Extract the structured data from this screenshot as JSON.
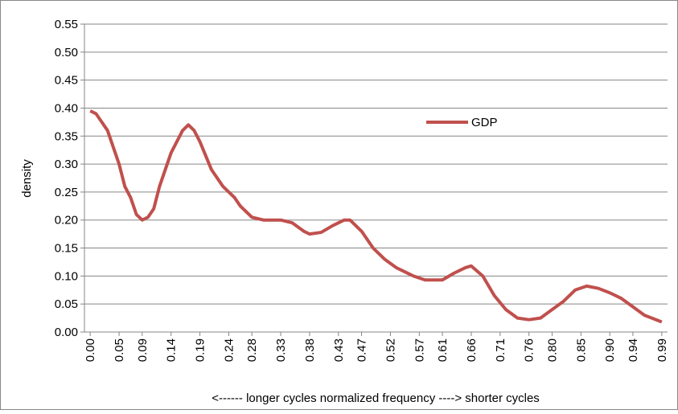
{
  "chart_data": {
    "type": "line",
    "xlabel": "<------ longer cycles   normalized frequency   ----> shorter cycles",
    "ylabel": "density",
    "series": [
      {
        "name": "GDP",
        "color": "#c0504d",
        "x": [
          0,
          0.01,
          0.03,
          0.05,
          0.06,
          0.07,
          0.08,
          0.09,
          0.1,
          0.11,
          0.12,
          0.14,
          0.16,
          0.17,
          0.18,
          0.19,
          0.21,
          0.23,
          0.25,
          0.26,
          0.28,
          0.3,
          0.33,
          0.35,
          0.37,
          0.38,
          0.4,
          0.42,
          0.44,
          0.45,
          0.47,
          0.49,
          0.51,
          0.53,
          0.56,
          0.58,
          0.61,
          0.63,
          0.65,
          0.66,
          0.68,
          0.7,
          0.72,
          0.74,
          0.76,
          0.78,
          0.8,
          0.82,
          0.84,
          0.86,
          0.88,
          0.9,
          0.92,
          0.94,
          0.96,
          0.99
        ],
        "values": [
          0.395,
          0.39,
          0.36,
          0.3,
          0.26,
          0.24,
          0.21,
          0.2,
          0.205,
          0.22,
          0.26,
          0.32,
          0.36,
          0.37,
          0.36,
          0.34,
          0.29,
          0.26,
          0.24,
          0.225,
          0.205,
          0.2,
          0.2,
          0.195,
          0.18,
          0.175,
          0.178,
          0.19,
          0.2,
          0.2,
          0.18,
          0.15,
          0.13,
          0.115,
          0.1,
          0.093,
          0.093,
          0.105,
          0.115,
          0.118,
          0.1,
          0.065,
          0.04,
          0.025,
          0.022,
          0.025,
          0.04,
          0.055,
          0.075,
          0.082,
          0.078,
          0.07,
          0.06,
          0.045,
          0.03,
          0.018
        ]
      }
    ],
    "xlim": [
      -0.01,
      1.0
    ],
    "xticks": [
      {
        "value": 0,
        "label": "0.00"
      },
      0.05,
      0.09,
      0.14,
      0.19,
      0.24,
      0.28,
      0.33,
      0.38,
      0.43,
      0.47,
      0.52,
      0.57,
      0.61,
      0.66,
      0.71,
      0.76,
      {
        "value": 0.8,
        "label": "0.80"
      },
      0.85,
      {
        "value": 0.9,
        "label": "0.90"
      },
      0.94,
      0.99
    ],
    "ylim": [
      0,
      0.55
    ],
    "yticks": [
      {
        "value": 0,
        "label": "0.00"
      },
      0.05,
      {
        "value": 0.1,
        "label": "0.10"
      },
      0.15,
      {
        "value": 0.2,
        "label": "0.20"
      },
      0.25,
      {
        "value": 0.3,
        "label": "0.30"
      },
      0.35,
      {
        "value": 0.4,
        "label": "0.40"
      },
      0.45,
      {
        "value": 0.5,
        "label": "0.50"
      },
      0.55
    ],
    "grid": true
  }
}
